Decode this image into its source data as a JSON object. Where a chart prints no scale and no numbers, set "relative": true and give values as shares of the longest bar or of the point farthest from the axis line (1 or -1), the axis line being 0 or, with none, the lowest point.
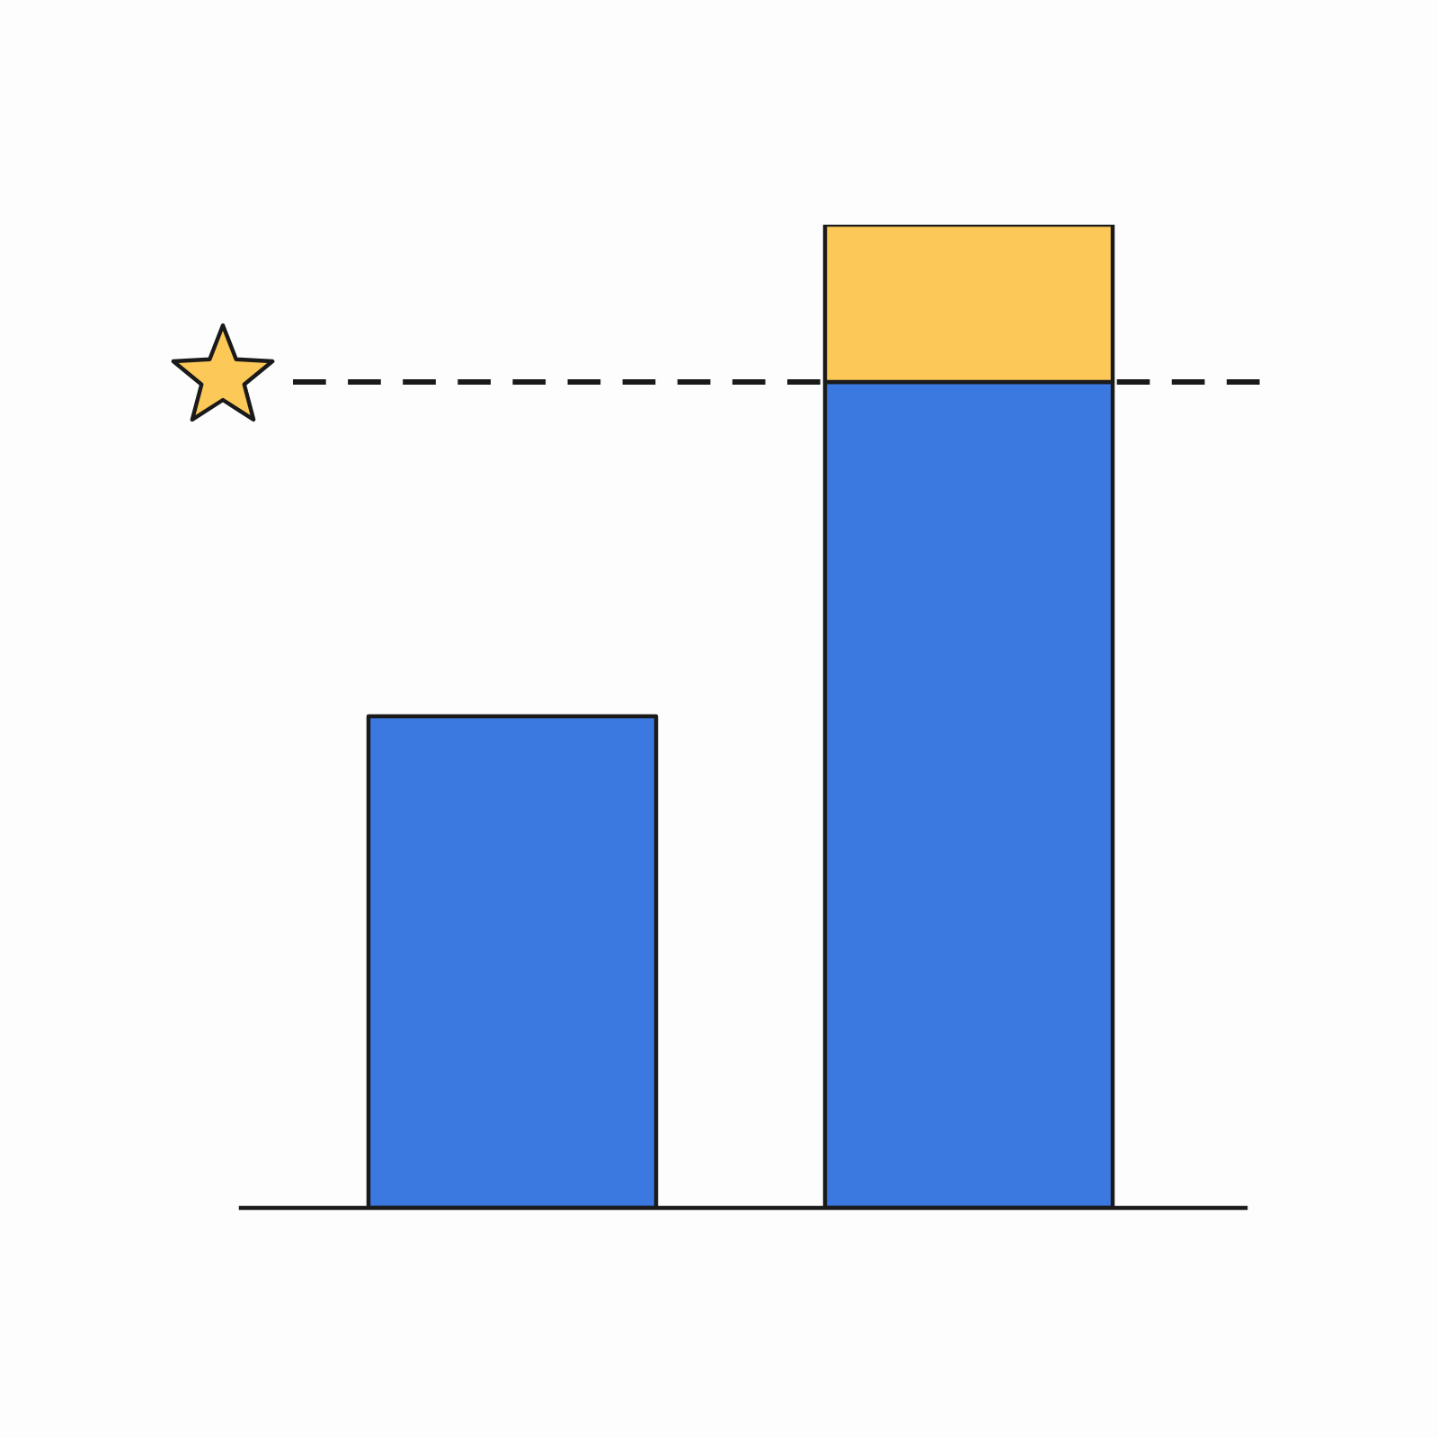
{
  "chart_data": {
    "type": "bar",
    "categories": [
      null,
      null
    ],
    "stacked": true,
    "relative": true,
    "series": [
      {
        "color": "#3b78e0",
        "values": [
          0.5,
          0.84
        ]
      },
      {
        "color": "#fcc857",
        "values": [
          null,
          0.16
        ]
      }
    ],
    "ref_lines": [
      {
        "axis": "y",
        "value": 0.84,
        "color": "#1a1a1a",
        "line_style": "dashed"
      }
    ],
    "legend": false,
    "grid": false,
    "tick_labels": false
  }
}
